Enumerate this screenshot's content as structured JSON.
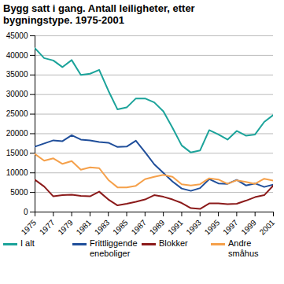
{
  "chart_data": {
    "type": "line",
    "title": "Bygg satt i gang. Antall leiligheter, etter bygningstype. 1975-2001",
    "x": [
      1975,
      1976,
      1977,
      1978,
      1979,
      1980,
      1981,
      1982,
      1983,
      1984,
      1985,
      1986,
      1987,
      1988,
      1989,
      1990,
      1991,
      1992,
      1993,
      1994,
      1995,
      1996,
      1997,
      1998,
      1999,
      2000,
      2001
    ],
    "series": [
      {
        "name": "I alt",
        "color": "#1ba39a",
        "values": [
          41800,
          39300,
          38700,
          37000,
          38800,
          35000,
          35300,
          36300,
          31000,
          26200,
          26700,
          29000,
          29000,
          28000,
          25700,
          21500,
          17000,
          15200,
          15700,
          20900,
          19800,
          18500,
          20700,
          19500,
          19800,
          23000,
          24800
        ]
      },
      {
        "name": "Frittliggende eneboliger",
        "color": "#1f4e9a",
        "values": [
          16700,
          17500,
          18300,
          18100,
          19600,
          18500,
          18300,
          17900,
          17700,
          16600,
          16700,
          18200,
          15300,
          12200,
          10000,
          7800,
          6000,
          5400,
          6100,
          8400,
          7300,
          7200,
          8200,
          6800,
          7300,
          6400,
          7000
        ]
      },
      {
        "name": "Blokker",
        "color": "#8b1a1a",
        "values": [
          8200,
          6500,
          4000,
          4300,
          4400,
          4100,
          4000,
          5200,
          3200,
          1700,
          2100,
          2600,
          3200,
          4300,
          3900,
          3200,
          2300,
          1000,
          800,
          2200,
          2200,
          2000,
          2100,
          2900,
          3800,
          4300,
          6800
        ]
      },
      {
        "name": "Andre småhus",
        "color": "#f5a04a",
        "values": [
          14800,
          13100,
          13700,
          12300,
          13000,
          10800,
          11400,
          11200,
          8200,
          6300,
          6300,
          6700,
          8400,
          9000,
          9500,
          9000,
          7100,
          6800,
          7100,
          8600,
          8300,
          7200,
          8100,
          7700,
          7200,
          8500,
          8000
        ]
      }
    ],
    "xlim": [
      1975,
      2001
    ],
    "xticks": [
      1975,
      1977,
      1979,
      1981,
      1983,
      1985,
      1987,
      1989,
      1991,
      1993,
      1995,
      1997,
      1999,
      2001
    ],
    "ylim": [
      0,
      45000
    ],
    "yticks": [
      0,
      5000,
      10000,
      15000,
      20000,
      25000,
      30000,
      35000,
      40000,
      45000
    ],
    "grid": true,
    "legend": "bottom"
  }
}
